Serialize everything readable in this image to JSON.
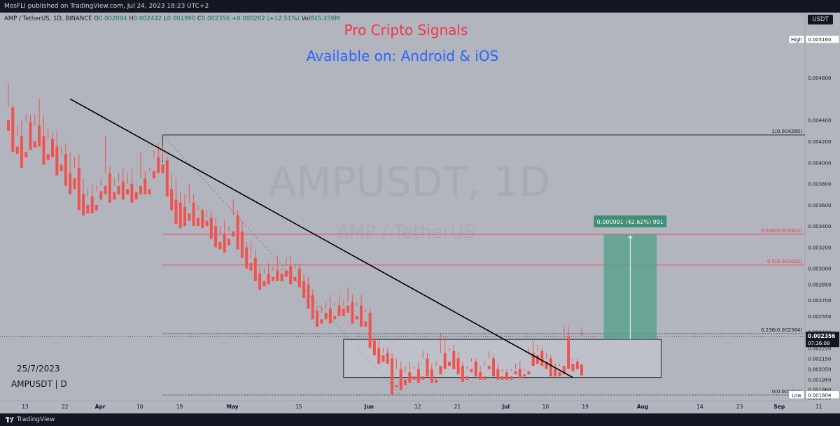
{
  "header": {
    "publish_line": "MosFLI published on TradingView.com, Jul 24, 2023 18:23 UTC+2"
  },
  "legend": {
    "symbol": "AMP / TetherUS, 1D, BINANCE",
    "o_label": "O",
    "o": "0.002094",
    "h_label": "H",
    "h": "0.002442",
    "l_label": "L",
    "l": "0.001990",
    "c_label": "C",
    "c": "0.002356",
    "change": "+0.000262 (+12.51%)",
    "vol_label": "Vol",
    "vol": "845.459M"
  },
  "currency_button": "USDT",
  "promo": {
    "line1": "Pro Cripto Signals",
    "line2": "Available on: Android & iOS"
  },
  "watermark": {
    "symbol": "AMPUSDT, 1D",
    "name": "AMP / TetherUS"
  },
  "notes": {
    "date": "25/7/2023",
    "symbol": "AMPUSDT | D"
  },
  "footer": {
    "brand": "TradingView"
  },
  "colors": {
    "background": "#b2b5be",
    "up": "#26a69a",
    "down": "#ef5350",
    "fib_red": "#f23645",
    "measure": "#4fa08a",
    "price_tag": "#131722"
  },
  "chart_data": {
    "type": "candlestick",
    "symbol": "AMPUSDT",
    "exchange": "BINANCE",
    "interval": "1D",
    "y_axis": {
      "ylim": [
        0.00175,
        0.00525
      ],
      "ticks": [
        "0.004800",
        "0.004400",
        "0.004200",
        "0.004000",
        "0.003800",
        "0.003600",
        "0.003400",
        "0.003200",
        "0.003000",
        "0.002850",
        "0.002700",
        "0.002550",
        "0.002400",
        "0.002250",
        "0.002150",
        "0.002050",
        "0.001950",
        "0.001860",
        "0.001780"
      ],
      "tick_values": [
        0.0048,
        0.0044,
        0.0042,
        0.004,
        0.0038,
        0.0036,
        0.0034,
        0.0032,
        0.003,
        0.00285,
        0.0027,
        0.00255,
        0.0024,
        0.00225,
        0.00215,
        0.00205,
        0.00195,
        0.00186,
        0.00178
      ],
      "tags": [
        {
          "label": "High",
          "value": "0.005160",
          "v": 0.00516
        },
        {
          "label": "",
          "value": "0.002356",
          "v": 0.002356,
          "extra": "07:36:08"
        },
        {
          "label": "Low",
          "value": "0.001804",
          "v": 0.001804
        }
      ]
    },
    "x_axis": {
      "ticks": [
        "13",
        "22",
        "Apr",
        "10",
        "19",
        "May",
        "15",
        "Jun",
        "12",
        "21",
        "Jul",
        "10",
        "19",
        "Aug",
        "14",
        "23",
        "Sep",
        "11"
      ],
      "tick_days": [
        0,
        9,
        17,
        26,
        35,
        47,
        62,
        78,
        89,
        98,
        109,
        118,
        127,
        140,
        153,
        162,
        171,
        180
      ]
    },
    "fibonacci": [
      {
        "level": "1",
        "value": "0.004260",
        "label": "1(0.004260)",
        "v": 0.00426
      },
      {
        "level": "0.618",
        "value": "0.003322",
        "label": "0.618(0.003322)",
        "v": 0.003322
      },
      {
        "level": "0.5",
        "value": "0.003032",
        "label": "0.5(0.003032)",
        "v": 0.003032
      },
      {
        "level": "0.236",
        "value": "0.002384",
        "label": "0.236(0.002384)",
        "v": 0.002384
      },
      {
        "level": "0",
        "value": "0.001804",
        "label": "0(0.001804)",
        "v": 0.001804
      }
    ],
    "trendline": {
      "from": {
        "day": 14,
        "price": 0.0046
      },
      "to": {
        "day": 128,
        "price": 0.00197
      }
    },
    "range_box": {
      "from_day": 76,
      "to_day": 148,
      "top": 0.00233,
      "bottom": 0.00197
    },
    "measure": {
      "label": "0.000991 (42.62%) 991",
      "from_day": 135,
      "to_day": 147,
      "bottom": 0.00233,
      "top": 0.003322
    },
    "candles": [
      [
        0.0044,
        0.00475,
        0.00452,
        0.0043
      ],
      [
        0.00452,
        0.00455,
        0.00415,
        0.0041
      ],
      [
        0.00415,
        0.00435,
        0.00425,
        0.00408
      ],
      [
        0.00425,
        0.0044,
        0.0041,
        0.00395
      ],
      [
        0.0041,
        0.00445,
        0.00438,
        0.00405
      ],
      [
        0.00438,
        0.00445,
        0.0042,
        0.00412
      ],
      [
        0.0042,
        0.00446,
        0.00435,
        0.00414
      ],
      [
        0.00435,
        0.0046,
        0.00425,
        0.00415
      ],
      [
        0.00425,
        0.00445,
        0.00408,
        0.00398
      ],
      [
        0.00408,
        0.00432,
        0.00422,
        0.00402
      ],
      [
        0.00422,
        0.0043,
        0.00415,
        0.00405
      ],
      [
        0.00415,
        0.0043,
        0.00398,
        0.00388
      ],
      [
        0.00398,
        0.00415,
        0.00408,
        0.00392
      ],
      [
        0.00408,
        0.00418,
        0.0039,
        0.00378
      ],
      [
        0.0039,
        0.0041,
        0.00385,
        0.0037
      ],
      [
        0.00385,
        0.00405,
        0.00395,
        0.00375
      ],
      [
        0.00395,
        0.00408,
        0.0037,
        0.00355
      ],
      [
        0.0037,
        0.00385,
        0.0036,
        0.0035
      ],
      [
        0.0036,
        0.00375,
        0.00368,
        0.00352
      ],
      [
        0.00368,
        0.0038,
        0.0036,
        0.00352
      ],
      [
        0.0036,
        0.00378,
        0.00373,
        0.00355
      ],
      [
        0.00373,
        0.00385,
        0.00378,
        0.00365
      ],
      [
        0.00378,
        0.00425,
        0.0039,
        0.0037
      ],
      [
        0.0039,
        0.00396,
        0.00372,
        0.00362
      ],
      [
        0.00372,
        0.00385,
        0.00378,
        0.00365
      ],
      [
        0.00378,
        0.0039,
        0.00382,
        0.0037
      ],
      [
        0.00382,
        0.00395,
        0.00375,
        0.00365
      ],
      [
        0.00375,
        0.0039,
        0.0038,
        0.0037
      ],
      [
        0.0038,
        0.00395,
        0.00372,
        0.00362
      ],
      [
        0.00372,
        0.0038,
        0.00378,
        0.00365
      ],
      [
        0.00378,
        0.0041,
        0.00385,
        0.0037
      ],
      [
        0.00385,
        0.00392,
        0.00375,
        0.0037
      ],
      [
        0.00375,
        0.00395,
        0.00392,
        0.0037
      ],
      [
        0.00392,
        0.00412,
        0.00405,
        0.00385
      ],
      [
        0.00405,
        0.00418,
        0.00398,
        0.0039
      ],
      [
        0.00398,
        0.00415,
        0.00402,
        0.0039
      ],
      [
        0.00402,
        0.00405,
        0.00375,
        0.00368
      ],
      [
        0.00375,
        0.0039,
        0.00365,
        0.00355
      ],
      [
        0.00365,
        0.00385,
        0.00362,
        0.00342
      ],
      [
        0.00362,
        0.00372,
        0.00358,
        0.00338
      ],
      [
        0.00358,
        0.0037,
        0.00352,
        0.0034
      ],
      [
        0.00352,
        0.0038,
        0.00362,
        0.00345
      ],
      [
        0.00362,
        0.0037,
        0.00348,
        0.0034
      ],
      [
        0.00348,
        0.0036,
        0.00355,
        0.0034
      ],
      [
        0.00355,
        0.00358,
        0.00345,
        0.00338
      ],
      [
        0.00345,
        0.00355,
        0.00348,
        0.0034
      ],
      [
        0.00348,
        0.00355,
        0.0034,
        0.00328
      ],
      [
        0.0034,
        0.00348,
        0.00325,
        0.0032
      ],
      [
        0.00325,
        0.0034,
        0.00332,
        0.00318
      ],
      [
        0.00332,
        0.00345,
        0.00328,
        0.00315
      ],
      [
        0.00328,
        0.0034,
        0.00335,
        0.00322
      ],
      [
        0.00335,
        0.00365,
        0.0035,
        0.0033
      ],
      [
        0.0035,
        0.00355,
        0.00335,
        0.00318
      ],
      [
        0.00335,
        0.00345,
        0.0032,
        0.0031
      ],
      [
        0.0032,
        0.00325,
        0.00305,
        0.003
      ],
      [
        0.00305,
        0.00325,
        0.0031,
        0.00298
      ],
      [
        0.0031,
        0.00318,
        0.00295,
        0.00288
      ],
      [
        0.00295,
        0.00302,
        0.00288,
        0.0028
      ],
      [
        0.00288,
        0.003,
        0.00295,
        0.00283
      ],
      [
        0.00295,
        0.00305,
        0.00292,
        0.00285
      ],
      [
        0.00292,
        0.00302,
        0.00298,
        0.00288
      ],
      [
        0.00298,
        0.00312,
        0.00295,
        0.00288
      ],
      [
        0.00295,
        0.003,
        0.00298,
        0.00288
      ],
      [
        0.00298,
        0.0031,
        0.00302,
        0.00292
      ],
      [
        0.00302,
        0.00312,
        0.00292,
        0.00285
      ],
      [
        0.00292,
        0.00305,
        0.003,
        0.00288
      ],
      [
        0.003,
        0.00305,
        0.00288,
        0.00282
      ],
      [
        0.00288,
        0.00295,
        0.00285,
        0.00272
      ],
      [
        0.00285,
        0.00292,
        0.00275,
        0.00262
      ],
      [
        0.00275,
        0.0028,
        0.0026,
        0.00252
      ],
      [
        0.0026,
        0.00265,
        0.00252,
        0.00245
      ],
      [
        0.00252,
        0.00265,
        0.00258,
        0.00248
      ],
      [
        0.00258,
        0.00268,
        0.00262,
        0.00252
      ],
      [
        0.00262,
        0.00275,
        0.00255,
        0.00248
      ],
      [
        0.00255,
        0.00268,
        0.00265,
        0.00252
      ],
      [
        0.00265,
        0.00275,
        0.00262,
        0.00255
      ],
      [
        0.00262,
        0.0027,
        0.00265,
        0.00255
      ],
      [
        0.00265,
        0.00282,
        0.00268,
        0.00258
      ],
      [
        0.00268,
        0.00275,
        0.00255,
        0.00248
      ],
      [
        0.00255,
        0.00268,
        0.00265,
        0.00252
      ],
      [
        0.00265,
        0.00275,
        0.0025,
        0.00245
      ],
      [
        0.0025,
        0.00262,
        0.00258,
        0.00245
      ],
      [
        0.00258,
        0.00262,
        0.00232,
        0.00225
      ],
      [
        0.00232,
        0.00238,
        0.00225,
        0.00218
      ],
      [
        0.00225,
        0.00232,
        0.00218,
        0.0021
      ],
      [
        0.00218,
        0.00225,
        0.0022,
        0.00212
      ],
      [
        0.0022,
        0.00225,
        0.00215,
        0.0021
      ],
      [
        0.00215,
        0.0022,
        0.0019,
        0.00181
      ],
      [
        0.0019,
        0.00215,
        0.00205,
        0.00188
      ],
      [
        0.00205,
        0.00212,
        0.00195,
        0.00185
      ],
      [
        0.00195,
        0.00208,
        0.00202,
        0.0019
      ],
      [
        0.00202,
        0.00212,
        0.00198,
        0.00192
      ],
      [
        0.00198,
        0.00208,
        0.00205,
        0.00195
      ],
      [
        0.00205,
        0.00212,
        0.00198,
        0.00192
      ],
      [
        0.00198,
        0.00222,
        0.00215,
        0.00195
      ],
      [
        0.00215,
        0.0022,
        0.00205,
        0.00198
      ],
      [
        0.00205,
        0.0021,
        0.00195,
        0.00192
      ],
      [
        0.00195,
        0.00212,
        0.00208,
        0.00192
      ],
      [
        0.00208,
        0.00238,
        0.0022,
        0.002
      ],
      [
        0.0022,
        0.00235,
        0.00212,
        0.00205
      ],
      [
        0.00212,
        0.00225,
        0.00222,
        0.00208
      ],
      [
        0.00222,
        0.00228,
        0.00215,
        0.00205
      ],
      [
        0.00215,
        0.00222,
        0.00208,
        0.002
      ],
      [
        0.00208,
        0.00212,
        0.00198,
        0.00193
      ],
      [
        0.00198,
        0.00208,
        0.00205,
        0.00195
      ],
      [
        0.00205,
        0.00215,
        0.00212,
        0.00202
      ],
      [
        0.00212,
        0.00215,
        0.00202,
        0.00198
      ],
      [
        0.00202,
        0.00208,
        0.00198,
        0.00195
      ],
      [
        0.00198,
        0.00212,
        0.00208,
        0.00195
      ],
      [
        0.00208,
        0.00222,
        0.00215,
        0.00205
      ],
      [
        0.00215,
        0.00218,
        0.00205,
        0.00198
      ],
      [
        0.00205,
        0.0021,
        0.00198,
        0.00195
      ],
      [
        0.00198,
        0.00205,
        0.00202,
        0.00195
      ],
      [
        0.00202,
        0.00205,
        0.00198,
        0.00195
      ],
      [
        0.00198,
        0.00205,
        0.00203,
        0.00195
      ],
      [
        0.00203,
        0.0021,
        0.00205,
        0.002
      ],
      [
        0.00205,
        0.00212,
        0.002,
        0.00196
      ],
      [
        0.002,
        0.00205,
        0.00203,
        0.00198
      ],
      [
        0.00203,
        0.00225,
        0.0022,
        0.002
      ],
      [
        0.0022,
        0.00232,
        0.00218,
        0.00208
      ],
      [
        0.00218,
        0.00228,
        0.00222,
        0.0021
      ],
      [
        0.00222,
        0.00225,
        0.00212,
        0.00208
      ],
      [
        0.00212,
        0.0022,
        0.00215,
        0.00205
      ],
      [
        0.00215,
        0.00218,
        0.00205,
        0.00198
      ],
      [
        0.00205,
        0.0021,
        0.00202,
        0.00198
      ],
      [
        0.00202,
        0.0021,
        0.00208,
        0.00198
      ],
      [
        0.00208,
        0.00245,
        0.00235,
        0.002
      ],
      [
        0.00235,
        0.00245,
        0.0021,
        0.00205
      ],
      [
        0.0021,
        0.00215,
        0.00212,
        0.00203
      ],
      [
        0.00212,
        0.00215,
        0.00209,
        0.00205
      ],
      [
        0.002094,
        0.002442,
        0.002356,
        0.00199
      ]
    ]
  }
}
